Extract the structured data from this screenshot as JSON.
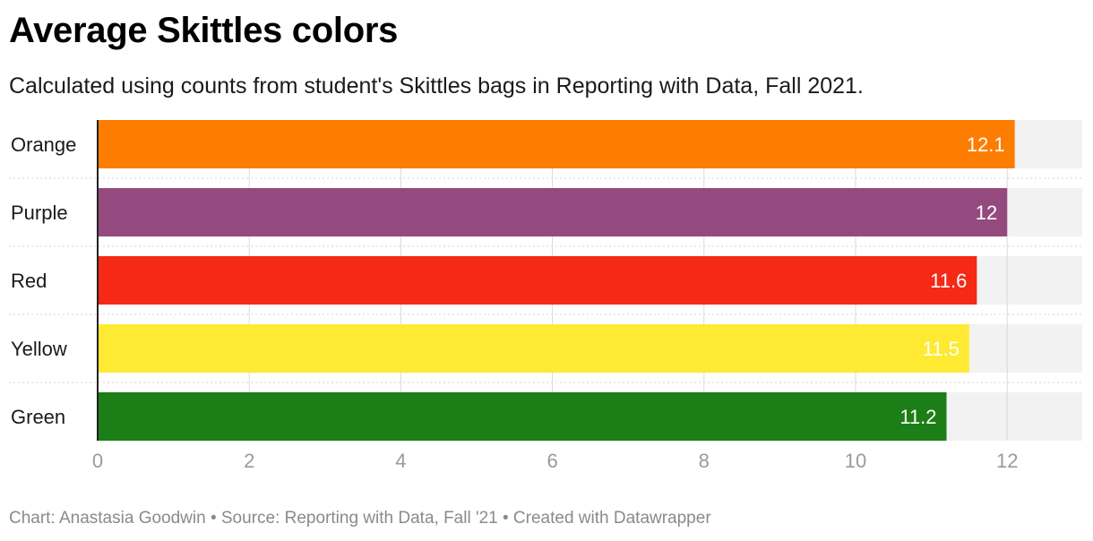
{
  "title": "Average Skittles colors",
  "subtitle": "Calculated using counts from student's Skittles bags in Reporting with Data, Fall 2021.",
  "footer": "Chart: Anastasia Goodwin • Source: Reporting with Data, Fall '21 • Created with Datawrapper",
  "chart_data": {
    "type": "bar",
    "orientation": "horizontal",
    "categories": [
      "Orange",
      "Purple",
      "Red",
      "Yellow",
      "Green"
    ],
    "values": [
      12.1,
      12,
      11.6,
      11.5,
      11.2
    ],
    "value_labels": [
      "12.1",
      "12",
      "11.6",
      "11.5",
      "11.2"
    ],
    "colors": [
      "#fd7d00",
      "#944a7e",
      "#f52915",
      "#feea32",
      "#1b7e16"
    ],
    "x_ticks": [
      0,
      2,
      4,
      6,
      8,
      10,
      12
    ],
    "xlim": [
      0,
      13
    ],
    "grid": true,
    "legend": "none"
  }
}
